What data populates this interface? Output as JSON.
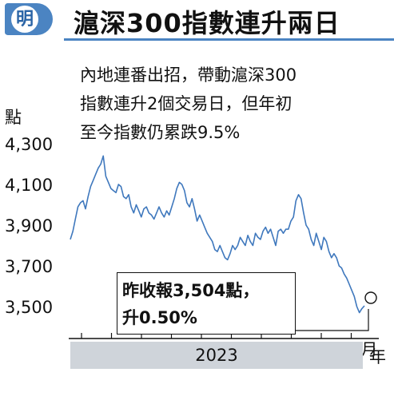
{
  "header": {
    "logo_text": "明",
    "title": "滬深300指數連升兩日"
  },
  "note": {
    "lines": [
      "內地連番出招，帶動滬深300",
      "指數連升2個交易日，但年初",
      "至今指數仍累跌9.5%"
    ]
  },
  "callout": {
    "line1": "昨收報3,504點，",
    "line2": "升0.50%"
  },
  "colors": {
    "brand": "#4b84c2",
    "series": "#3f78bd",
    "axis": "#111111",
    "year_bar": "#cfd4da"
  },
  "chart_data": {
    "type": "line",
    "ylabel": "點",
    "xlabel_unit": "月",
    "year": "2023",
    "ylim": [
      3420,
      4330
    ],
    "yticks": [
      4300,
      4100,
      3900,
      3700,
      3500
    ],
    "ytick_labels": [
      "4,300",
      "4,100",
      "3,900",
      "3,700",
      "3,500"
    ],
    "xticks": [
      "1",
      "2",
      "3",
      "4",
      "5",
      "6",
      "7",
      "8",
      "9",
      "10"
    ],
    "x_unit_suffix": "月",
    "grid": false,
    "series": [
      {
        "values": [
          3830,
          3870,
          3930,
          3990,
          4010,
          4020,
          3980,
          4040,
          4090,
          4120,
          4150,
          4180,
          4200,
          4240,
          4140,
          4110,
          4080,
          4070,
          4060,
          4100,
          4090,
          4040,
          4030,
          4050,
          3990,
          3960,
          4000,
          3970,
          3940,
          3980,
          3990,
          3960,
          3950,
          3930,
          3960,
          3990,
          3960,
          3940,
          3970,
          3950,
          3990,
          4030,
          4080,
          4110,
          4100,
          4070,
          4010,
          3990,
          4030,
          3980,
          3920,
          3950,
          3920,
          3890,
          3860,
          3840,
          3820,
          3780,
          3770,
          3800,
          3770,
          3740,
          3730,
          3760,
          3800,
          3780,
          3800,
          3840,
          3820,
          3800,
          3850,
          3820,
          3800,
          3860,
          3840,
          3830,
          3870,
          3890,
          3860,
          3880,
          3840,
          3800,
          3870,
          3880,
          3860,
          3880,
          3880,
          3920,
          3940,
          4020,
          4050,
          4030,
          3960,
          3900,
          3880,
          3830,
          3800,
          3860,
          3820,
          3780,
          3840,
          3820,
          3770,
          3740,
          3760,
          3740,
          3700,
          3690,
          3660,
          3640,
          3610,
          3580,
          3550,
          3500,
          3470,
          3490,
          3504
        ]
      }
    ],
    "annotation": {
      "text_line1": "昨收報3,504點，",
      "text_line2": "升0.50%",
      "last_value": 3504
    }
  }
}
